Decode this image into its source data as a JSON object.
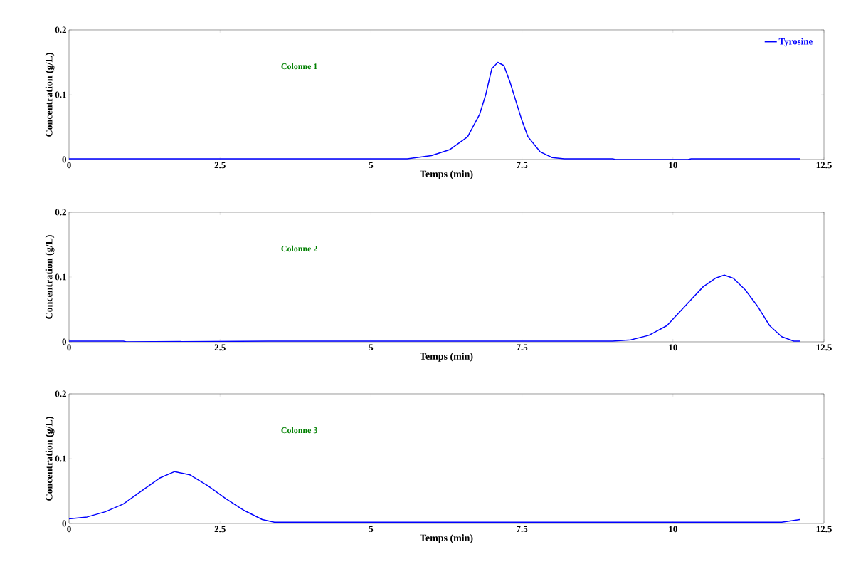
{
  "chart_data": [
    {
      "type": "line",
      "xlabel": "Temps (min)",
      "ylabel": "Concentration (g/L)",
      "annotations": [
        "Colonne 1"
      ],
      "xlim": [
        0,
        12.5
      ],
      "ylim": [
        0,
        0.2
      ],
      "xticks": [
        0,
        2.5,
        5,
        7.5,
        10,
        12.5
      ],
      "yticks": [
        0,
        0.1,
        0.2
      ],
      "legend": "top right",
      "series": [
        {
          "name": "Tyrosine",
          "color": "#0000ff",
          "x": [
            0,
            5.6,
            6.0,
            6.3,
            6.6,
            6.8,
            6.9,
            7.0,
            7.1,
            7.2,
            7.3,
            7.4,
            7.5,
            7.6,
            7.8,
            8.0,
            8.2,
            9.0,
            9.05,
            10.25,
            10.3,
            12.1
          ],
          "values": [
            0.001,
            0.001,
            0.006,
            0.015,
            0.035,
            0.07,
            0.1,
            0.14,
            0.15,
            0.145,
            0.12,
            0.09,
            0.06,
            0.035,
            0.012,
            0.003,
            0.001,
            0.001,
            0,
            0,
            0.001,
            0.001
          ]
        }
      ]
    },
    {
      "type": "line",
      "xlabel": "Temps (min)",
      "ylabel": "Concentration (g/L)",
      "annotations": [
        "Colonne 2"
      ],
      "xlim": [
        0,
        12.5
      ],
      "ylim": [
        0,
        0.2
      ],
      "xticks": [
        0,
        2.5,
        5,
        7.5,
        10,
        12.5
      ],
      "yticks": [
        0,
        0.1,
        0.2
      ],
      "series": [
        {
          "color": "#0000ff",
          "x": [
            0,
            0.9,
            0.95,
            3.3,
            9.0,
            9.3,
            9.6,
            9.9,
            10.1,
            10.3,
            10.5,
            10.7,
            10.85,
            11.0,
            11.2,
            11.4,
            11.6,
            11.8,
            12.0,
            12.1
          ],
          "values": [
            0.001,
            0.001,
            0,
            0.001,
            0.001,
            0.003,
            0.01,
            0.025,
            0.045,
            0.065,
            0.085,
            0.098,
            0.103,
            0.098,
            0.08,
            0.055,
            0.025,
            0.008,
            0.001,
            0.001
          ]
        }
      ]
    },
    {
      "type": "line",
      "xlabel": "Temps (min)",
      "ylabel": "Concentration (g/L)",
      "annotations": [
        "Colonne 3"
      ],
      "xlim": [
        0,
        12.5
      ],
      "ylim": [
        0,
        0.2
      ],
      "xticks": [
        0,
        2.5,
        5,
        7.5,
        10,
        12.5
      ],
      "yticks": [
        0,
        0.1,
        0.2
      ],
      "series": [
        {
          "color": "#0000ff",
          "x": [
            0,
            0.3,
            0.6,
            0.9,
            1.2,
            1.5,
            1.75,
            2.0,
            2.3,
            2.6,
            2.9,
            3.2,
            3.4,
            5.0,
            8.0,
            11.8,
            12.1
          ],
          "values": [
            0.007,
            0.01,
            0.018,
            0.03,
            0.05,
            0.07,
            0.08,
            0.075,
            0.058,
            0.038,
            0.02,
            0.006,
            0.002,
            0.002,
            0.002,
            0.002,
            0.006
          ]
        }
      ]
    }
  ]
}
